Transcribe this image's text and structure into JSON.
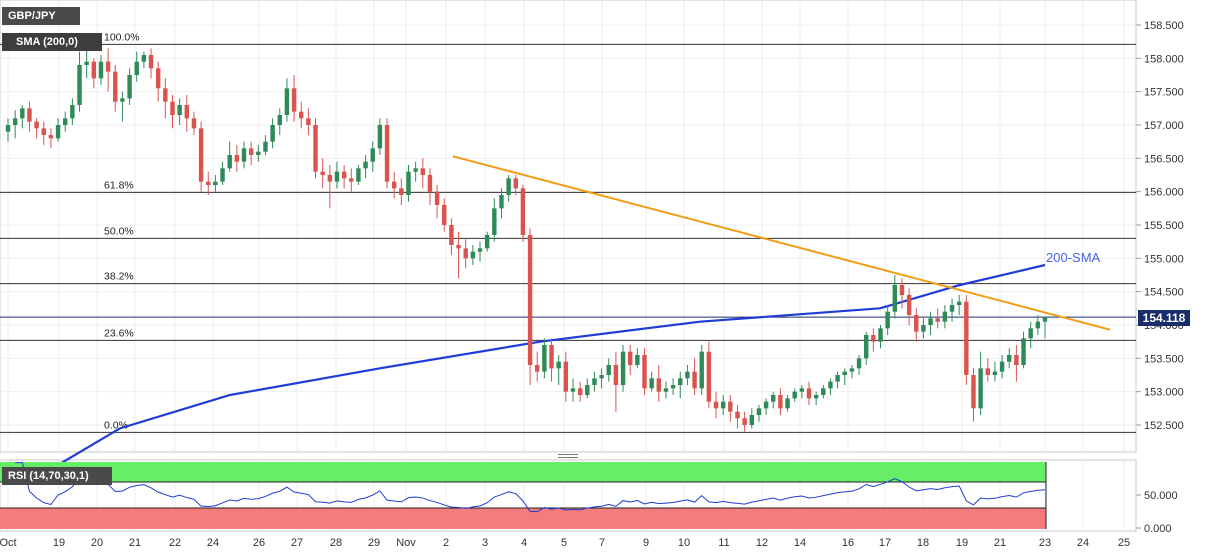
{
  "chart_data": {
    "type": "candlestick",
    "symbol": "GBP/JPY",
    "indicator": "SMA (200,0)",
    "sma_label": "200-SMA",
    "last_price": "154.118",
    "y_ticks": [
      "158.500",
      "158.000",
      "157.500",
      "157.000",
      "156.500",
      "156.000",
      "155.500",
      "155.000",
      "154.500",
      "154.000",
      "153.500",
      "153.000",
      "152.500"
    ],
    "ylim": [
      152.25,
      158.8
    ],
    "x_ticks": [
      "Oct",
      "19",
      "20",
      "21",
      "22",
      "24",
      "26",
      "27",
      "28",
      "29",
      "Nov",
      "2",
      "3",
      "4",
      "5",
      "7",
      "9",
      "10",
      "11",
      "12",
      "14",
      "16",
      "17",
      "18",
      "19",
      "21",
      "23",
      "24",
      "25"
    ],
    "fibonacci": [
      {
        "label": "100.0%",
        "price": 158.21
      },
      {
        "label": "61.8%",
        "price": 155.99
      },
      {
        "label": "50.0%",
        "price": 155.3
      },
      {
        "label": "38.2%",
        "price": 154.62
      },
      {
        "label": "23.6%",
        "price": 153.77
      },
      {
        "label": "0.0%",
        "price": 152.39
      }
    ],
    "horizontal_line": 154.118,
    "trendline": [
      [
        156.53
      ],
      [
        153.93
      ]
    ],
    "candles": [
      [
        156.9,
        157.1,
        157.0,
        156.75
      ],
      [
        157.0,
        157.22,
        157.1,
        156.8
      ],
      [
        157.1,
        157.3,
        157.25,
        156.95
      ],
      [
        157.25,
        157.35,
        157.05,
        156.9
      ],
      [
        157.05,
        157.1,
        156.95,
        156.8
      ],
      [
        156.95,
        157.05,
        156.85,
        156.7
      ],
      [
        156.85,
        156.95,
        156.8,
        156.65
      ],
      [
        156.8,
        157.1,
        157.0,
        156.75
      ],
      [
        157.0,
        157.2,
        157.1,
        156.9
      ],
      [
        157.1,
        157.4,
        157.3,
        157.0
      ],
      [
        157.3,
        158.1,
        157.9,
        157.2
      ],
      [
        157.9,
        158.2,
        157.95,
        157.7
      ],
      [
        157.95,
        158.0,
        157.7,
        157.55
      ],
      [
        157.7,
        158.05,
        157.95,
        157.6
      ],
      [
        157.95,
        158.15,
        157.8,
        157.5
      ],
      [
        157.8,
        157.9,
        157.35,
        157.2
      ],
      [
        157.35,
        157.5,
        157.4,
        157.05
      ],
      [
        157.4,
        157.85,
        157.75,
        157.3
      ],
      [
        157.75,
        158.1,
        157.95,
        157.65
      ],
      [
        157.95,
        158.1,
        158.05,
        157.85
      ],
      [
        158.05,
        158.15,
        157.85,
        157.7
      ],
      [
        157.85,
        157.95,
        157.55,
        157.35
      ],
      [
        157.55,
        157.7,
        157.35,
        157.1
      ],
      [
        157.35,
        157.45,
        157.15,
        156.95
      ],
      [
        157.15,
        157.4,
        157.3,
        157.0
      ],
      [
        157.3,
        157.45,
        157.1,
        156.9
      ],
      [
        157.1,
        157.2,
        156.95,
        156.85
      ],
      [
        156.95,
        157.05,
        156.15,
        156.0
      ],
      [
        156.15,
        156.3,
        156.1,
        155.95
      ],
      [
        156.1,
        156.25,
        156.15,
        156.0
      ],
      [
        156.15,
        156.45,
        156.35,
        156.1
      ],
      [
        156.35,
        156.75,
        156.55,
        156.3
      ],
      [
        156.55,
        156.7,
        156.45,
        156.3
      ],
      [
        156.45,
        156.75,
        156.65,
        156.35
      ],
      [
        156.65,
        156.75,
        156.55,
        156.4
      ],
      [
        156.55,
        156.7,
        156.6,
        156.45
      ],
      [
        156.6,
        156.85,
        156.75,
        156.55
      ],
      [
        156.75,
        157.1,
        157.0,
        156.65
      ],
      [
        157.0,
        157.25,
        157.15,
        156.85
      ],
      [
        157.15,
        157.7,
        157.55,
        157.05
      ],
      [
        157.55,
        157.75,
        157.2,
        157.05
      ],
      [
        157.2,
        157.35,
        157.1,
        156.95
      ],
      [
        157.1,
        157.25,
        157.0,
        156.85
      ],
      [
        157.0,
        157.1,
        156.3,
        156.2
      ],
      [
        156.3,
        156.5,
        156.25,
        156.05
      ],
      [
        156.25,
        156.4,
        156.15,
        155.75
      ],
      [
        156.15,
        156.45,
        156.3,
        156.05
      ],
      [
        156.3,
        156.4,
        156.2,
        156.05
      ],
      [
        156.2,
        156.35,
        156.15,
        156.0
      ],
      [
        156.15,
        156.4,
        156.35,
        156.1
      ],
      [
        156.35,
        156.55,
        156.45,
        156.2
      ],
      [
        156.45,
        156.75,
        156.65,
        156.3
      ],
      [
        156.65,
        157.1,
        157.0,
        156.55
      ],
      [
        157.0,
        157.1,
        156.15,
        156.05
      ],
      [
        156.15,
        156.3,
        156.05,
        155.9
      ],
      [
        156.05,
        156.2,
        155.95,
        155.8
      ],
      [
        155.95,
        156.4,
        156.3,
        155.85
      ],
      [
        156.3,
        156.45,
        156.35,
        156.15
      ],
      [
        156.35,
        156.5,
        156.25,
        156.05
      ],
      [
        156.25,
        156.35,
        156.0,
        155.8
      ],
      [
        156.0,
        156.1,
        155.8,
        155.6
      ],
      [
        155.8,
        155.9,
        155.5,
        155.4
      ],
      [
        155.5,
        155.6,
        155.2,
        155.05
      ],
      [
        155.2,
        155.4,
        155.15,
        154.7
      ],
      [
        155.15,
        155.3,
        155.0,
        154.85
      ],
      [
        155.0,
        155.2,
        155.1,
        154.9
      ],
      [
        155.1,
        155.25,
        155.15,
        154.95
      ],
      [
        155.15,
        155.4,
        155.35,
        155.1
      ],
      [
        155.35,
        155.9,
        155.75,
        155.25
      ],
      [
        155.75,
        156.05,
        155.95,
        155.6
      ],
      [
        155.95,
        156.25,
        156.2,
        155.85
      ],
      [
        156.2,
        156.25,
        156.05,
        155.95
      ],
      [
        156.05,
        156.1,
        155.35,
        155.25
      ],
      [
        155.35,
        155.45,
        153.4,
        153.1
      ],
      [
        153.4,
        153.6,
        153.3,
        153.15
      ],
      [
        153.3,
        153.8,
        153.7,
        153.2
      ],
      [
        153.7,
        153.8,
        153.35,
        153.15
      ],
      [
        153.35,
        153.55,
        153.45,
        153.1
      ],
      [
        153.45,
        153.6,
        153.0,
        152.85
      ],
      [
        153.0,
        153.2,
        153.05,
        152.85
      ],
      [
        153.05,
        153.15,
        152.95,
        152.85
      ],
      [
        152.95,
        153.2,
        153.1,
        152.9
      ],
      [
        153.1,
        153.3,
        153.2,
        153.0
      ],
      [
        153.2,
        153.35,
        153.25,
        153.05
      ],
      [
        153.25,
        153.5,
        153.4,
        153.15
      ],
      [
        153.4,
        153.6,
        153.1,
        152.7
      ],
      [
        153.1,
        153.7,
        153.6,
        153.0
      ],
      [
        153.6,
        153.7,
        153.4,
        153.25
      ],
      [
        153.4,
        153.65,
        153.55,
        153.35
      ],
      [
        153.55,
        153.65,
        153.05,
        152.95
      ],
      [
        153.05,
        153.3,
        153.2,
        153.0
      ],
      [
        153.2,
        153.4,
        153.0,
        152.85
      ],
      [
        153.0,
        153.15,
        153.05,
        152.9
      ],
      [
        153.05,
        153.2,
        153.1,
        152.95
      ],
      [
        153.1,
        153.3,
        153.2,
        152.9
      ],
      [
        153.2,
        153.4,
        153.3,
        153.1
      ],
      [
        153.3,
        153.5,
        153.05,
        152.95
      ],
      [
        153.05,
        153.7,
        153.6,
        152.95
      ],
      [
        153.6,
        153.75,
        152.85,
        152.75
      ],
      [
        152.85,
        153.0,
        152.75,
        152.6
      ],
      [
        152.75,
        152.95,
        152.85,
        152.65
      ],
      [
        152.85,
        152.95,
        152.7,
        152.55
      ],
      [
        152.7,
        152.8,
        152.6,
        152.45
      ],
      [
        152.6,
        152.7,
        152.5,
        152.4
      ],
      [
        152.5,
        152.75,
        152.65,
        152.45
      ],
      [
        152.65,
        152.8,
        152.75,
        152.55
      ],
      [
        152.75,
        152.9,
        152.85,
        152.65
      ],
      [
        152.85,
        153.0,
        152.95,
        152.75
      ],
      [
        152.95,
        153.05,
        152.75,
        152.65
      ],
      [
        152.75,
        152.95,
        152.9,
        152.7
      ],
      [
        152.9,
        153.05,
        153.0,
        152.85
      ],
      [
        153.0,
        153.1,
        153.05,
        152.9
      ],
      [
        153.05,
        153.15,
        152.9,
        152.8
      ],
      [
        152.9,
        153.0,
        152.95,
        152.8
      ],
      [
        152.95,
        153.1,
        153.05,
        152.9
      ],
      [
        153.05,
        153.2,
        153.15,
        152.95
      ],
      [
        153.15,
        153.3,
        153.25,
        153.05
      ],
      [
        153.25,
        153.35,
        153.3,
        153.1
      ],
      [
        153.3,
        153.4,
        153.35,
        153.2
      ],
      [
        153.35,
        153.55,
        153.5,
        153.25
      ],
      [
        153.5,
        153.9,
        153.85,
        153.4
      ],
      [
        153.85,
        153.95,
        153.75,
        153.6
      ],
      [
        153.75,
        154.0,
        153.95,
        153.65
      ],
      [
        153.95,
        154.3,
        154.2,
        153.85
      ],
      [
        154.2,
        154.75,
        154.6,
        154.1
      ],
      [
        154.6,
        154.7,
        154.45,
        154.25
      ],
      [
        154.45,
        154.55,
        154.15,
        154.0
      ],
      [
        154.15,
        154.25,
        153.9,
        153.75
      ],
      [
        153.9,
        154.1,
        154.0,
        153.8
      ],
      [
        154.0,
        154.2,
        154.1,
        153.85
      ],
      [
        154.1,
        154.25,
        154.05,
        153.95
      ],
      [
        154.05,
        154.3,
        154.2,
        153.95
      ],
      [
        154.2,
        154.4,
        154.3,
        154.05
      ],
      [
        154.3,
        154.45,
        154.35,
        154.15
      ],
      [
        154.35,
        154.45,
        153.25,
        153.1
      ],
      [
        153.25,
        153.35,
        152.75,
        152.55
      ],
      [
        152.75,
        153.6,
        153.35,
        152.65
      ],
      [
        153.35,
        153.5,
        153.25,
        153.15
      ],
      [
        153.25,
        153.45,
        153.3,
        153.15
      ],
      [
        153.3,
        153.55,
        153.45,
        153.2
      ],
      [
        153.45,
        153.65,
        153.55,
        153.35
      ],
      [
        153.55,
        153.7,
        153.4,
        153.15
      ],
      [
        153.4,
        153.9,
        153.8,
        153.35
      ],
      [
        153.8,
        154.05,
        153.95,
        153.65
      ],
      [
        153.95,
        154.15,
        154.05,
        153.85
      ],
      [
        154.05,
        154.12,
        154.118,
        153.8
      ]
    ],
    "sma_200": [
      [
        151.9
      ],
      [
        152.45
      ],
      [
        152.95
      ],
      [
        153.35
      ],
      [
        153.75
      ],
      [
        154.05
      ],
      [
        154.25
      ],
      [
        154.6
      ],
      [
        154.9
      ]
    ],
    "rsi": {
      "label": "RSI (14,70,30,1)",
      "ticks": [
        "50.000",
        "0.000"
      ],
      "overbought": 70,
      "oversold": 30
    }
  }
}
